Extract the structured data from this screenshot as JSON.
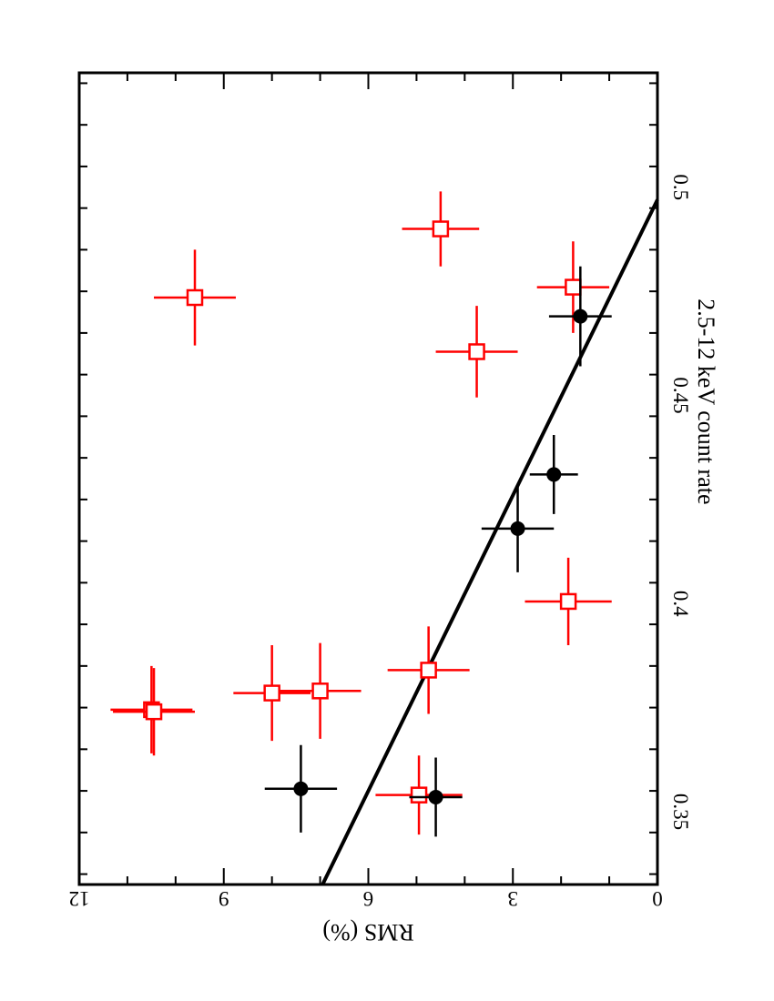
{
  "chart_data": {
    "type": "scatter",
    "orientation": "rotated-90-clockwise",
    "xlabel": "2.5-12 keV count rate",
    "ylabel": "RMS (%)",
    "xlim": [
      0.3325,
      0.5275
    ],
    "ylim": [
      0,
      12
    ],
    "x_ticks": [
      "0.35",
      "0.4",
      "0.45",
      "0.5"
    ],
    "y_ticks": [
      "0",
      "3",
      "6",
      "9",
      "12"
    ],
    "grid": false,
    "legend": "none",
    "series": [
      {
        "marker": "filled-circle",
        "color": "#000000",
        "points": [
          {
            "x": 0.3555,
            "y": 7.4,
            "xerr": 0.0105,
            "yerr": 0.75
          },
          {
            "x": 0.3535,
            "y": 4.6,
            "xerr": 0.0095,
            "yerr": 0.55
          },
          {
            "x": 0.418,
            "y": 2.9,
            "xerr": 0.0105,
            "yerr": 0.75
          },
          {
            "x": 0.431,
            "y": 2.15,
            "xerr": 0.0095,
            "yerr": 0.5
          },
          {
            "x": 0.469,
            "y": 1.6,
            "xerr": 0.012,
            "yerr": 0.65
          }
        ]
      },
      {
        "marker": "open-square",
        "color": "#ff0000",
        "points": [
          {
            "x": 0.3745,
            "y": 10.5,
            "xerr": 0.0105,
            "yerr": 0.85
          },
          {
            "x": 0.374,
            "y": 10.45,
            "xerr": 0.0105,
            "yerr": 0.85
          },
          {
            "x": 0.4735,
            "y": 9.6,
            "xerr": 0.0115,
            "yerr": 0.85
          },
          {
            "x": 0.3785,
            "y": 8.0,
            "xerr": 0.0115,
            "yerr": 0.8
          },
          {
            "x": 0.379,
            "y": 7.0,
            "xerr": 0.0115,
            "yerr": 0.85
          },
          {
            "x": 0.384,
            "y": 4.75,
            "xerr": 0.0105,
            "yerr": 0.85
          },
          {
            "x": 0.354,
            "y": 4.95,
            "xerr": 0.0095,
            "yerr": 0.9
          },
          {
            "x": 0.49,
            "y": 4.5,
            "xerr": 0.009,
            "yerr": 0.8
          },
          {
            "x": 0.4605,
            "y": 3.75,
            "xerr": 0.011,
            "yerr": 0.85
          },
          {
            "x": 0.476,
            "y": 1.75,
            "xerr": 0.011,
            "yerr": 0.75
          },
          {
            "x": 0.4005,
            "y": 1.85,
            "xerr": 0.0105,
            "yerr": 0.9
          }
        ]
      }
    ],
    "fit_line": {
      "color": "#000000",
      "x": [
        0.3325,
        0.497
      ],
      "y": [
        6.95,
        0.0
      ]
    }
  }
}
